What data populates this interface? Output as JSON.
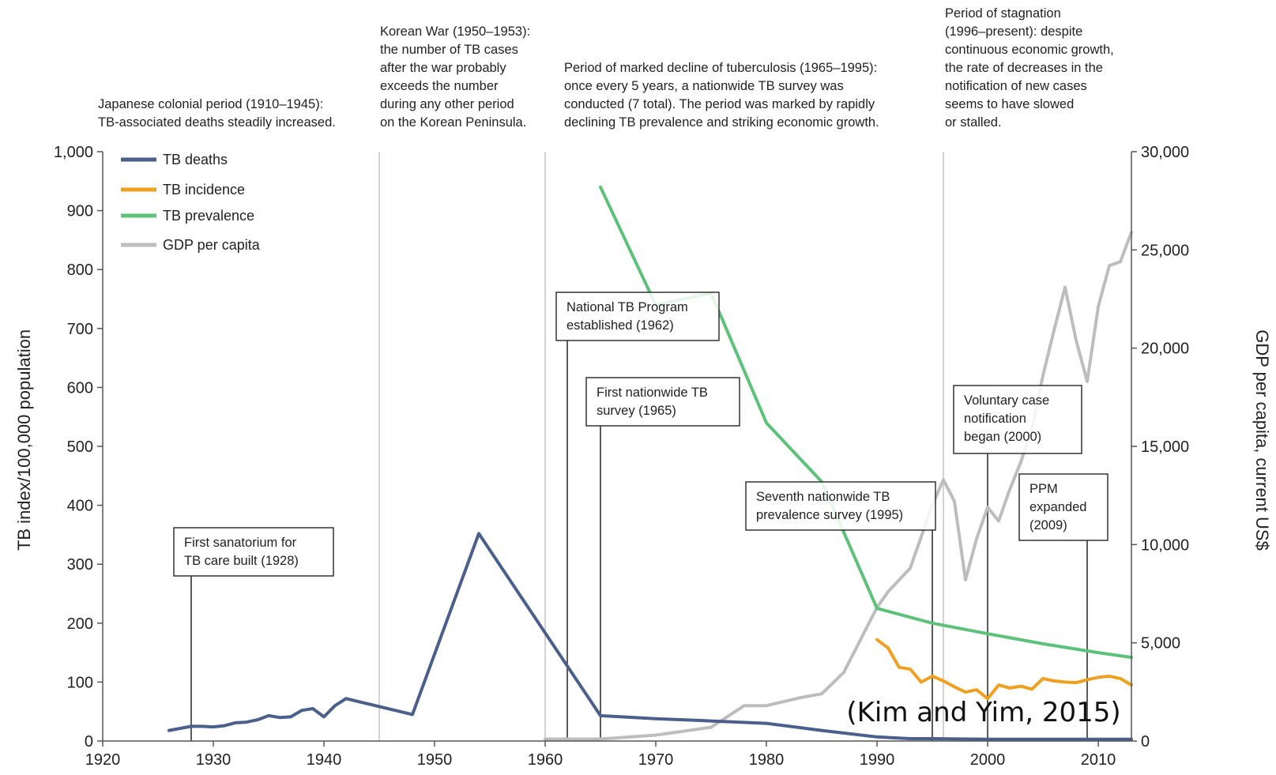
{
  "chart_data": {
    "type": "line",
    "xlim": [
      1920,
      2013
    ],
    "ylim_left": [
      0,
      1000
    ],
    "ylim_right": [
      0,
      30000
    ],
    "ylabel": "TB index/100,000 population",
    "ylabel_right": "GDP per capita, current US$",
    "x_ticks": [
      "1920",
      "1930",
      "1940",
      "1950",
      "1960",
      "1970",
      "1980",
      "1990",
      "2000",
      "2010"
    ],
    "y_ticks_left": [
      "0",
      "100",
      "200",
      "300",
      "400",
      "500",
      "600",
      "700",
      "800",
      "900",
      "1,000"
    ],
    "y_ticks_right": [
      "0",
      "5,000",
      "10,000",
      "15,000",
      "20,000",
      "25,000",
      "30,000"
    ],
    "legend_position": "top-left",
    "grid": false,
    "series": [
      {
        "name": "TB deaths",
        "axis": "left",
        "color": "#4a5f8c",
        "x": [
          1926,
          1928,
          1929,
          1930,
          1931,
          1932,
          1933,
          1934,
          1935,
          1936,
          1937,
          1938,
          1939,
          1940,
          1941,
          1942,
          1948,
          1954,
          1965,
          1970,
          1975,
          1980,
          1985,
          1990,
          1993,
          1995,
          2000,
          2005,
          2010,
          2013
        ],
        "y": [
          18,
          25,
          25,
          24,
          26,
          31,
          32,
          36,
          43,
          40,
          41,
          52,
          55,
          41,
          60,
          72,
          45,
          352,
          43,
          38,
          34,
          30,
          18,
          7,
          4,
          4,
          3,
          3,
          3,
          3
        ]
      },
      {
        "name": "TB incidence",
        "axis": "left",
        "color": "#f0a020",
        "x": [
          1990,
          1991,
          1992,
          1993,
          1994,
          1995,
          1996,
          1997,
          1998,
          1999,
          2000,
          2001,
          2002,
          2003,
          2004,
          2005,
          2006,
          2007,
          2008,
          2009,
          2010,
          2011,
          2012,
          2013
        ],
        "y": [
          172,
          158,
          125,
          122,
          100,
          110,
          102,
          92,
          83,
          87,
          72,
          95,
          90,
          93,
          88,
          106,
          102,
          100,
          99,
          104,
          108,
          110,
          106,
          95
        ]
      },
      {
        "name": "TB prevalence",
        "axis": "left",
        "color": "#5cc27a",
        "x": [
          1965,
          1970,
          1975,
          1980,
          1985,
          1990,
          1995,
          2000,
          2005,
          2010,
          2013
        ],
        "y": [
          940,
          740,
          760,
          540,
          440,
          225,
          200,
          182,
          165,
          150,
          142
        ]
      },
      {
        "name": "GDP per capita",
        "axis": "right",
        "color": "#bdbdbd",
        "x": [
          1960,
          1965,
          1970,
          1975,
          1978,
          1980,
          1983,
          1985,
          1987,
          1990,
          1991,
          1993,
          1995,
          1996,
          1997,
          1998,
          1999,
          2000,
          2001,
          2002,
          2003,
          2004,
          2005,
          2006,
          2007,
          2008,
          2009,
          2010,
          2011,
          2012,
          2013
        ],
        "y": [
          100,
          100,
          300,
          700,
          1800,
          1800,
          2200,
          2400,
          3500,
          6800,
          7600,
          8800,
          12000,
          13300,
          12200,
          8200,
          10300,
          11900,
          11200,
          12800,
          14200,
          15900,
          18600,
          20900,
          23100,
          20400,
          18300,
          22100,
          24200,
          24400,
          25900
        ]
      }
    ],
    "period_notes": [
      {
        "lines": [
          "Japanese colonial period (1910–1945):",
          "TB-associated deaths steadily increased."
        ]
      },
      {
        "lines": [
          "Korean War (1950–1953):",
          "the number of TB cases",
          "after the war probably",
          "exceeds the number",
          "during any other period",
          "on the Korean Peninsula."
        ]
      },
      {
        "lines": [
          "Period of marked decline of tuberculosis (1965–1995):",
          "once every 5 years, a nationwide TB survey was",
          "conducted (7 total). The period was marked by rapidly",
          "declining TB prevalence and striking economic growth."
        ]
      },
      {
        "lines": [
          "Period of stagnation",
          "(1996–present):  despite",
          "continuous economic growth,",
          "the rate of decreases in the",
          "notification of new cases",
          "seems to have slowed",
          "or stalled."
        ]
      }
    ],
    "period_dividers_year": [
      1945,
      1960,
      1996
    ],
    "annotations": [
      {
        "year": 1928,
        "lines": [
          "First sanatorium for",
          "TB care built (1928)"
        ]
      },
      {
        "year": 1962,
        "lines": [
          "National TB Program",
          "established (1962)"
        ]
      },
      {
        "year": 1965,
        "lines": [
          "First nationwide TB",
          "survey (1965)"
        ]
      },
      {
        "year": 1995,
        "lines": [
          "Seventh nationwide TB",
          "prevalence survey (1995)"
        ]
      },
      {
        "year": 2000,
        "lines": [
          "Voluntary case",
          "notification",
          "began (2000)"
        ]
      },
      {
        "year": 2009,
        "lines": [
          "PPM",
          "expanded",
          "(2009)"
        ]
      }
    ],
    "citation": "(Kim and Yim, 2015)"
  }
}
